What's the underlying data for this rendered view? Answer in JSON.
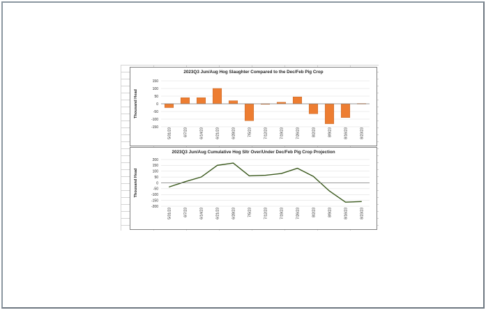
{
  "colors": {
    "bar_fill": "#ed7d31",
    "bar_stroke": "#b85410",
    "line_color": "#38571a",
    "gridline": "#d9d9d9",
    "axis": "#7f7f7f",
    "text": "#262626"
  },
  "chart_data": [
    {
      "type": "bar",
      "title": "2023Q3 Jun/Aug Hog Slaughter Compared to the Dec/Feb Pig Crop",
      "ylabel": "Thousand Head",
      "xlabel": "",
      "categories": [
        "5/31/23",
        "6/7/23",
        "6/14/23",
        "6/21/23",
        "6/28/23",
        "7/5/23",
        "7/12/23",
        "7/19/23",
        "7/26/23",
        "8/2/23",
        "8/9/23",
        "8/16/23",
        "8/23/23"
      ],
      "values": [
        -25,
        40,
        40,
        100,
        20,
        -110,
        0,
        10,
        45,
        -65,
        -130,
        -90,
        2
      ],
      "ylim": [
        -150,
        150
      ],
      "yticks": [
        -150,
        -100,
        -50,
        0,
        50,
        100,
        150
      ],
      "grid": true,
      "legend": "none"
    },
    {
      "type": "line",
      "title": "2023Q3 Jun/Aug Cumulative Hog Sltr Over/Under Dec/Feb Pig Crop Projection",
      "ylabel": "Thousand Head",
      "xlabel": "",
      "categories": [
        "5/31/23",
        "6/7/23",
        "6/14/23",
        "6/21/23",
        "6/28/23",
        "7/5/23",
        "7/12/23",
        "7/19/23",
        "7/26/23",
        "8/2/23",
        "8/9/23",
        "8/16/23",
        "8/23/23"
      ],
      "values": [
        -35,
        10,
        50,
        150,
        170,
        60,
        65,
        80,
        125,
        55,
        -70,
        -165,
        -160
      ],
      "ylim": [
        -200,
        200
      ],
      "yticks": [
        -200,
        -150,
        -100,
        -50,
        0,
        50,
        100,
        150,
        200
      ],
      "grid": true,
      "legend": "none"
    }
  ]
}
